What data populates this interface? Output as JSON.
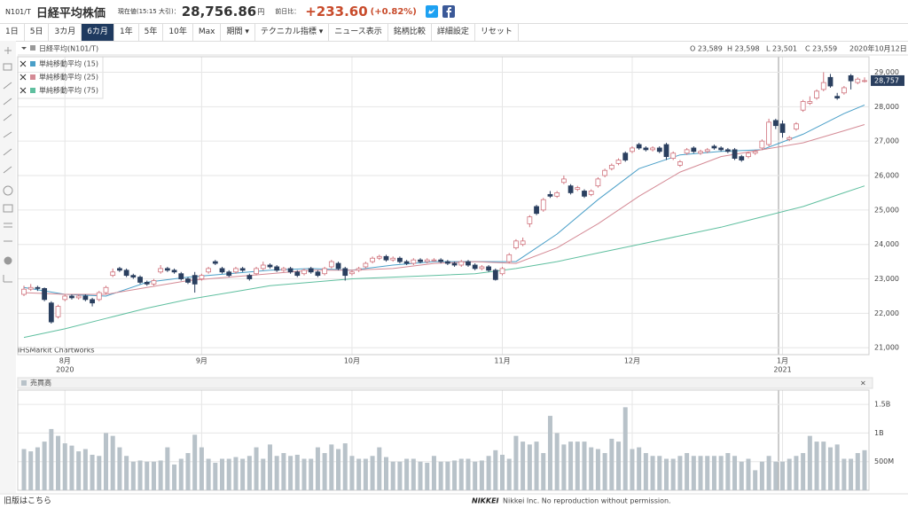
{
  "header": {
    "code": "N101/T",
    "name": "日経平均株価",
    "price_caption": "現在値(15:15 大引)：",
    "price": "28,756.86",
    "price_unit": "円",
    "change_caption": "前日比：",
    "change": "+233.60",
    "change_pct": "(+0.82%)"
  },
  "toolbar": {
    "buttons": [
      "1日",
      "5日",
      "3カ月",
      "6カ月",
      "1年",
      "5年",
      "10年",
      "Max",
      "期間 ▾",
      "テクニカル指標 ▾",
      "ニュース表示",
      "銘柄比較",
      "詳細設定",
      "リセット"
    ],
    "active": 3
  },
  "ohlc_header": {
    "open": "O 23,589",
    "high": "H 23,598",
    "low": "L 23,501",
    "close": "C 23,559",
    "date": "2020年10月12日"
  },
  "footer": {
    "old_version": "旧版はこちら",
    "brand": "NIKKEI",
    "copyright": "Nikkei Inc. No reproduction without permission."
  },
  "chart_data": {
    "type": "candlestick",
    "title": "日経平均(N101/T)",
    "source": "IHSMarkit Chartworks",
    "grid": true,
    "colors": {
      "up": "#d0737d",
      "down": "#2a3f5f"
    },
    "candles": [
      [
        22550,
        22800,
        22500,
        22700
      ],
      [
        22700,
        22850,
        22650,
        22750
      ],
      [
        22750,
        22800,
        22650,
        22720
      ],
      [
        22720,
        22750,
        22350,
        22400
      ],
      [
        22300,
        22350,
        21700,
        21750
      ],
      [
        21900,
        22250,
        21850,
        22200
      ],
      [
        22400,
        22550,
        22350,
        22500
      ],
      [
        22500,
        22550,
        22400,
        22450
      ],
      [
        22450,
        22550,
        22400,
        22500
      ],
      [
        22500,
        22550,
        22350,
        22400
      ],
      [
        22400,
        22450,
        22200,
        22300
      ],
      [
        22400,
        22650,
        22350,
        22600
      ],
      [
        22600,
        22800,
        22550,
        22750
      ],
      [
        23100,
        23300,
        23050,
        23200
      ],
      [
        23300,
        23350,
        23200,
        23250
      ],
      [
        23250,
        23300,
        23050,
        23100
      ],
      [
        23100,
        23150,
        23000,
        23050
      ],
      [
        23050,
        23100,
        22850,
        22900
      ],
      [
        22900,
        22950,
        22800,
        22850
      ],
      [
        22850,
        23000,
        22800,
        22950
      ],
      [
        23200,
        23400,
        23150,
        23300
      ],
      [
        23300,
        23350,
        23200,
        23250
      ],
      [
        23250,
        23300,
        23150,
        23200
      ],
      [
        23150,
        23200,
        22950,
        23000
      ],
      [
        23000,
        23050,
        22850,
        22900
      ],
      [
        23100,
        23200,
        22600,
        22850
      ],
      [
        23000,
        23150,
        22950,
        23100
      ],
      [
        23200,
        23350,
        23150,
        23300
      ],
      [
        23500,
        23550,
        23400,
        23450
      ],
      [
        23300,
        23350,
        23150,
        23200
      ],
      [
        23200,
        23250,
        23050,
        23100
      ],
      [
        23200,
        23350,
        23150,
        23300
      ],
      [
        23300,
        23350,
        23200,
        23250
      ],
      [
        23100,
        23150,
        22950,
        23000
      ],
      [
        23150,
        23350,
        23100,
        23300
      ],
      [
        23300,
        23500,
        23250,
        23400
      ],
      [
        23400,
        23450,
        23300,
        23350
      ],
      [
        23350,
        23400,
        23200,
        23250
      ],
      [
        23250,
        23350,
        23200,
        23300
      ],
      [
        23300,
        23350,
        23150,
        23200
      ],
      [
        23200,
        23250,
        23050,
        23100
      ],
      [
        23150,
        23300,
        23100,
        23250
      ],
      [
        23300,
        23350,
        23150,
        23200
      ],
      [
        23200,
        23250,
        23050,
        23100
      ],
      [
        23150,
        23350,
        23100,
        23300
      ],
      [
        23350,
        23550,
        23300,
        23500
      ],
      [
        23450,
        23500,
        23250,
        23300
      ],
      [
        23300,
        23350,
        22950,
        23100
      ],
      [
        23150,
        23250,
        23100,
        23200
      ],
      [
        23250,
        23350,
        23200,
        23300
      ],
      [
        23350,
        23500,
        23300,
        23450
      ],
      [
        23500,
        23650,
        23450,
        23600
      ],
      [
        23600,
        23700,
        23550,
        23650
      ],
      [
        23650,
        23700,
        23500,
        23550
      ],
      [
        23550,
        23650,
        23500,
        23600
      ],
      [
        23600,
        23650,
        23450,
        23500
      ],
      [
        23500,
        23550,
        23400,
        23450
      ],
      [
        23450,
        23600,
        23400,
        23550
      ],
      [
        23550,
        23600,
        23450,
        23500
      ],
      [
        23500,
        23600,
        23450,
        23550
      ],
      [
        23540,
        23600,
        23500,
        23550
      ],
      [
        23550,
        23600,
        23450,
        23500
      ],
      [
        23500,
        23550,
        23400,
        23450
      ],
      [
        23450,
        23500,
        23350,
        23400
      ],
      [
        23400,
        23550,
        23350,
        23500
      ],
      [
        23500,
        23550,
        23350,
        23400
      ],
      [
        23400,
        23450,
        23250,
        23300
      ],
      [
        23300,
        23400,
        23250,
        23350
      ],
      [
        23350,
        23400,
        23200,
        23250
      ],
      [
        23250,
        23300,
        22950,
        22980
      ],
      [
        23150,
        23350,
        23100,
        23300
      ],
      [
        23500,
        23750,
        23450,
        23700
      ],
      [
        23900,
        24150,
        23850,
        24100
      ],
      [
        24000,
        24200,
        23950,
        24100
      ],
      [
        24600,
        24850,
        24500,
        24800
      ],
      [
        25100,
        25150,
        24850,
        24900
      ],
      [
        25000,
        25350,
        24950,
        25300
      ],
      [
        25450,
        25550,
        25350,
        25400
      ],
      [
        25400,
        25550,
        25350,
        25500
      ],
      [
        25800,
        26000,
        25750,
        25900
      ],
      [
        25700,
        25750,
        25450,
        25500
      ],
      [
        25600,
        25700,
        25550,
        25650
      ],
      [
        25550,
        25600,
        25350,
        25400
      ],
      [
        25450,
        25600,
        25400,
        25550
      ],
      [
        25700,
        25950,
        25650,
        25900
      ],
      [
        26000,
        26200,
        25950,
        26150
      ],
      [
        26200,
        26350,
        26150,
        26300
      ],
      [
        26350,
        26500,
        26300,
        26450
      ],
      [
        26650,
        26700,
        26400,
        26450
      ],
      [
        26700,
        26850,
        26650,
        26800
      ],
      [
        26900,
        26950,
        26750,
        26800
      ],
      [
        26800,
        26850,
        26700,
        26750
      ],
      [
        26750,
        26850,
        26700,
        26800
      ],
      [
        26800,
        26850,
        26650,
        26700
      ],
      [
        26900,
        26950,
        26450,
        26550
      ],
      [
        26500,
        26700,
        26450,
        26650
      ],
      [
        26300,
        26450,
        26250,
        26400
      ],
      [
        26650,
        26800,
        26600,
        26750
      ],
      [
        26800,
        26850,
        26650,
        26700
      ],
      [
        26650,
        26750,
        26600,
        26700
      ],
      [
        26700,
        26800,
        26650,
        26750
      ],
      [
        26850,
        26900,
        26750,
        26800
      ],
      [
        26800,
        26850,
        26700,
        26750
      ],
      [
        26750,
        26800,
        26650,
        26700
      ],
      [
        26750,
        26800,
        26450,
        26500
      ],
      [
        26550,
        26600,
        26400,
        26450
      ],
      [
        26550,
        26700,
        26500,
        26650
      ],
      [
        26650,
        26750,
        26600,
        26700
      ],
      [
        26800,
        27050,
        26750,
        27000
      ],
      [
        26900,
        27650,
        26850,
        27550
      ],
      [
        27600,
        27650,
        27350,
        27450
      ],
      [
        27500,
        27600,
        27100,
        27250
      ],
      [
        27050,
        27150,
        27000,
        27100
      ],
      [
        27350,
        27550,
        27300,
        27500
      ],
      [
        27900,
        28200,
        27850,
        28150
      ],
      [
        28100,
        28300,
        28050,
        28150
      ],
      [
        28250,
        28500,
        28200,
        28450
      ],
      [
        28500,
        29000,
        28450,
        28700
      ],
      [
        28850,
        28950,
        28550,
        28600
      ],
      [
        28300,
        28400,
        28200,
        28250
      ],
      [
        28400,
        28600,
        28350,
        28550
      ],
      [
        28900,
        28950,
        28500,
        28750
      ],
      [
        28700,
        28850,
        28650,
        28800
      ],
      [
        28750,
        28850,
        28700,
        28757
      ]
    ],
    "month_ticks": [
      {
        "index": 6,
        "label": "8月",
        "year": "2020"
      },
      {
        "index": 26,
        "label": "9月"
      },
      {
        "index": 48,
        "label": "10月"
      },
      {
        "index": 70,
        "label": "11月"
      },
      {
        "index": 89,
        "label": "12月"
      },
      {
        "index": 111,
        "label": "1月",
        "year": "2021"
      }
    ],
    "ylim": [
      20800,
      29450
    ],
    "yticks": [
      {
        "value": 21000,
        "label": "21,000"
      },
      {
        "value": 22000,
        "label": "22,000"
      },
      {
        "value": 23000,
        "label": "23,000"
      },
      {
        "value": 24000,
        "label": "24,000"
      },
      {
        "value": 25000,
        "label": "25,000"
      },
      {
        "value": 26000,
        "label": "26,000"
      },
      {
        "value": 27000,
        "label": "27,000"
      },
      {
        "value": 28000,
        "label": "28,000"
      },
      {
        "value": 29000,
        "label": "29,000"
      }
    ],
    "last_label": "28,757",
    "ma_x": [
      0,
      6,
      12,
      18,
      24,
      30,
      36,
      42,
      48,
      54,
      60,
      66,
      72,
      78,
      84,
      90,
      96,
      102,
      108,
      114,
      120,
      123
    ],
    "series": [
      {
        "name": "単純移動平均 (15)",
        "color": "#4a9fc8",
        "values": [
          22750,
          22550,
          22500,
          22900,
          23050,
          23150,
          23250,
          23300,
          23250,
          23400,
          23500,
          23500,
          23500,
          24300,
          25300,
          26200,
          26600,
          26700,
          26750,
          27200,
          27800,
          28050
        ]
      },
      {
        "name": "単純移動平均 (25)",
        "color": "#d48a95",
        "values": [
          22600,
          22550,
          22550,
          22750,
          22950,
          23050,
          23150,
          23250,
          23250,
          23300,
          23450,
          23500,
          23450,
          23900,
          24600,
          25400,
          26100,
          26550,
          26750,
          26950,
          27300,
          27480
        ]
      },
      {
        "name": "単純移動平均 (75)",
        "color": "#5fbf9f",
        "values": [
          21300,
          21550,
          21850,
          22150,
          22400,
          22600,
          22800,
          22900,
          23000,
          23050,
          23100,
          23150,
          23300,
          23500,
          23750,
          24000,
          24250,
          24500,
          24800,
          25100,
          25500,
          25700
        ]
      }
    ],
    "volume": {
      "title": "売買高",
      "close": "×",
      "color": "#b8c2c9",
      "ylim": [
        0,
        1750000000.0
      ],
      "yticks": [
        {
          "value": 500000000.0,
          "label": "500M"
        },
        {
          "value": 1000000000.0,
          "label": "1B"
        },
        {
          "value": 1500000000.0,
          "label": "1.5B"
        }
      ],
      "values": [
        720000000.0,
        680000000.0,
        750000000.0,
        850000000.0,
        1070000000.0,
        950000000.0,
        820000000.0,
        780000000.0,
        680000000.0,
        720000000.0,
        620000000.0,
        600000000.0,
        1000000000.0,
        950000000.0,
        750000000.0,
        600000000.0,
        500000000.0,
        520000000.0,
        500000000.0,
        500000000.0,
        520000000.0,
        750000000.0,
        450000000.0,
        550000000.0,
        650000000.0,
        970000000.0,
        750000000.0,
        550000000.0,
        480000000.0,
        550000000.0,
        550000000.0,
        580000000.0,
        550000000.0,
        600000000.0,
        750000000.0,
        550000000.0,
        800000000.0,
        600000000.0,
        650000000.0,
        600000000.0,
        620000000.0,
        550000000.0,
        550000000.0,
        750000000.0,
        650000000.0,
        800000000.0,
        720000000.0,
        820000000.0,
        600000000.0,
        550000000.0,
        550000000.0,
        600000000.0,
        750000000.0,
        580000000.0,
        500000000.0,
        500000000.0,
        550000000.0,
        550000000.0,
        500000000.0,
        480000000.0,
        600000000.0,
        500000000.0,
        500000000.0,
        520000000.0,
        550000000.0,
        550000000.0,
        500000000.0,
        520000000.0,
        600000000.0,
        700000000.0,
        620000000.0,
        550000000.0,
        950000000.0,
        850000000.0,
        800000000.0,
        850000000.0,
        650000000.0,
        1300000000.0,
        1000000000.0,
        800000000.0,
        850000000.0,
        850000000.0,
        850000000.0,
        750000000.0,
        720000000.0,
        650000000.0,
        900000000.0,
        850000000.0,
        1450000000.0,
        720000000.0,
        750000000.0,
        650000000.0,
        600000000.0,
        600000000.0,
        550000000.0,
        550000000.0,
        600000000.0,
        650000000.0,
        600000000.0,
        600000000.0,
        600000000.0,
        600000000.0,
        600000000.0,
        650000000.0,
        600000000.0,
        500000000.0,
        550000000.0,
        350000000.0,
        500000000.0,
        600000000.0,
        500000000.0,
        500000000.0,
        550000000.0,
        600000000.0,
        650000000.0,
        950000000.0,
        850000000.0,
        850000000.0,
        750000000.0,
        800000000.0,
        550000000.0,
        550000000.0,
        650000000.0,
        700000000.0
      ]
    }
  }
}
